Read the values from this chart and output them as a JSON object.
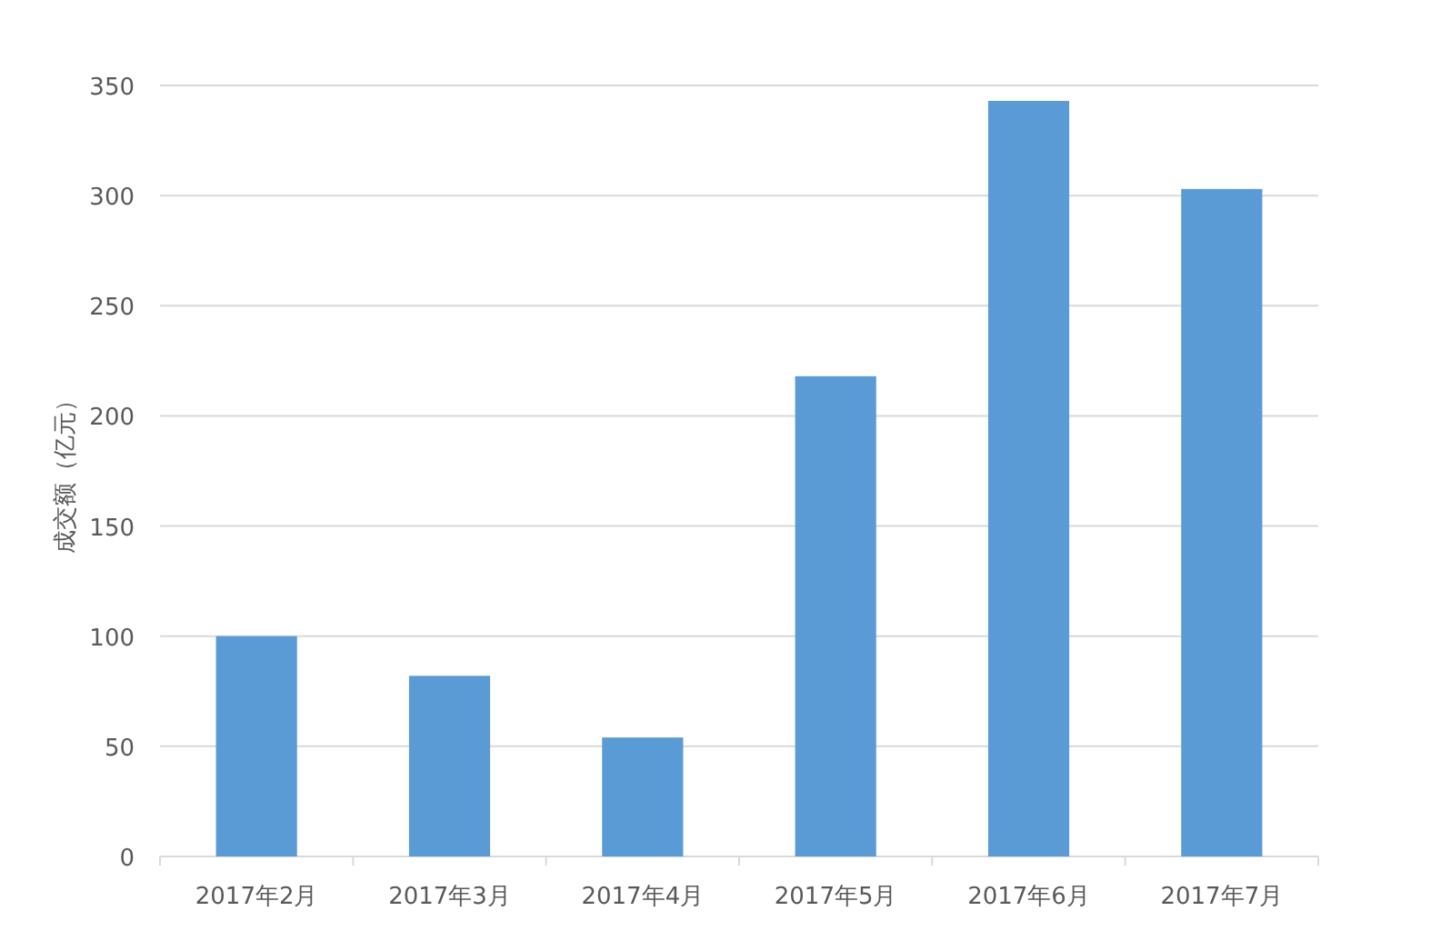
{
  "chart_data": {
    "type": "bar",
    "ylabel": "成交额（亿元）",
    "categories": [
      "2017年2月",
      "2017年3月",
      "2017年4月",
      "2017年5月",
      "2017年6月",
      "2017年7月"
    ],
    "values": [
      100,
      82,
      54,
      218,
      343,
      303
    ],
    "color": "#5b9bd5",
    "ylim": [
      0,
      350
    ],
    "yticks": [
      0,
      50,
      100,
      150,
      200,
      250,
      300,
      350
    ],
    "grid": "y"
  }
}
